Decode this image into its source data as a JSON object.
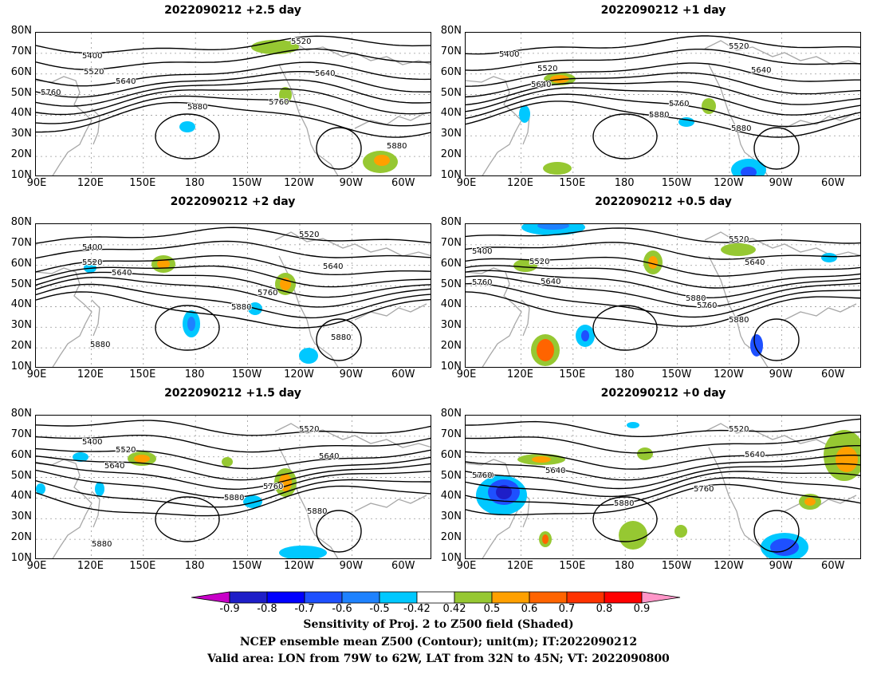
{
  "panels": [
    {
      "title": "2022090212 +2.5 day"
    },
    {
      "title": "2022090212 +1 day"
    },
    {
      "title": "2022090212 +2 day"
    },
    {
      "title": "2022090212 +0.5 day"
    },
    {
      "title": "2022090212 +1.5 day"
    },
    {
      "title": "2022090212 +0 day"
    }
  ],
  "lat_labels": [
    "80N",
    "70N",
    "60N",
    "50N",
    "40N",
    "30N",
    "20N",
    "10N"
  ],
  "lon_labels": [
    "90E",
    "120E",
    "150E",
    "180",
    "150W",
    "120W",
    "90W",
    "60W"
  ],
  "contour_labels": [
    "5400",
    "5520",
    "5640",
    "5760",
    "5880"
  ],
  "colorbar": {
    "labels": [
      "-0.9",
      "-0.8",
      "-0.7",
      "-0.6",
      "-0.5",
      "-0.42",
      "0.42",
      "0.5",
      "0.6",
      "0.7",
      "0.8",
      "0.9"
    ],
    "colors": [
      "#c800c8",
      "#1e1ec8",
      "#0000ff",
      "#1e50ff",
      "#1e82ff",
      "#00c8ff",
      "#ffffff",
      "#96c832",
      "#ffa000",
      "#ff6400",
      "#ff3200",
      "#ff0000",
      "#ff96c8"
    ]
  },
  "captions": [
    "Sensitivity of Proj. 2 to Z500 field (Shaded)",
    "NCEP ensemble mean Z500 (Contour); unit(m); IT:2022090212",
    "Valid area: LON from 79W to 62W, LAT from 32N to 45N; VT: 2022090800"
  ]
}
